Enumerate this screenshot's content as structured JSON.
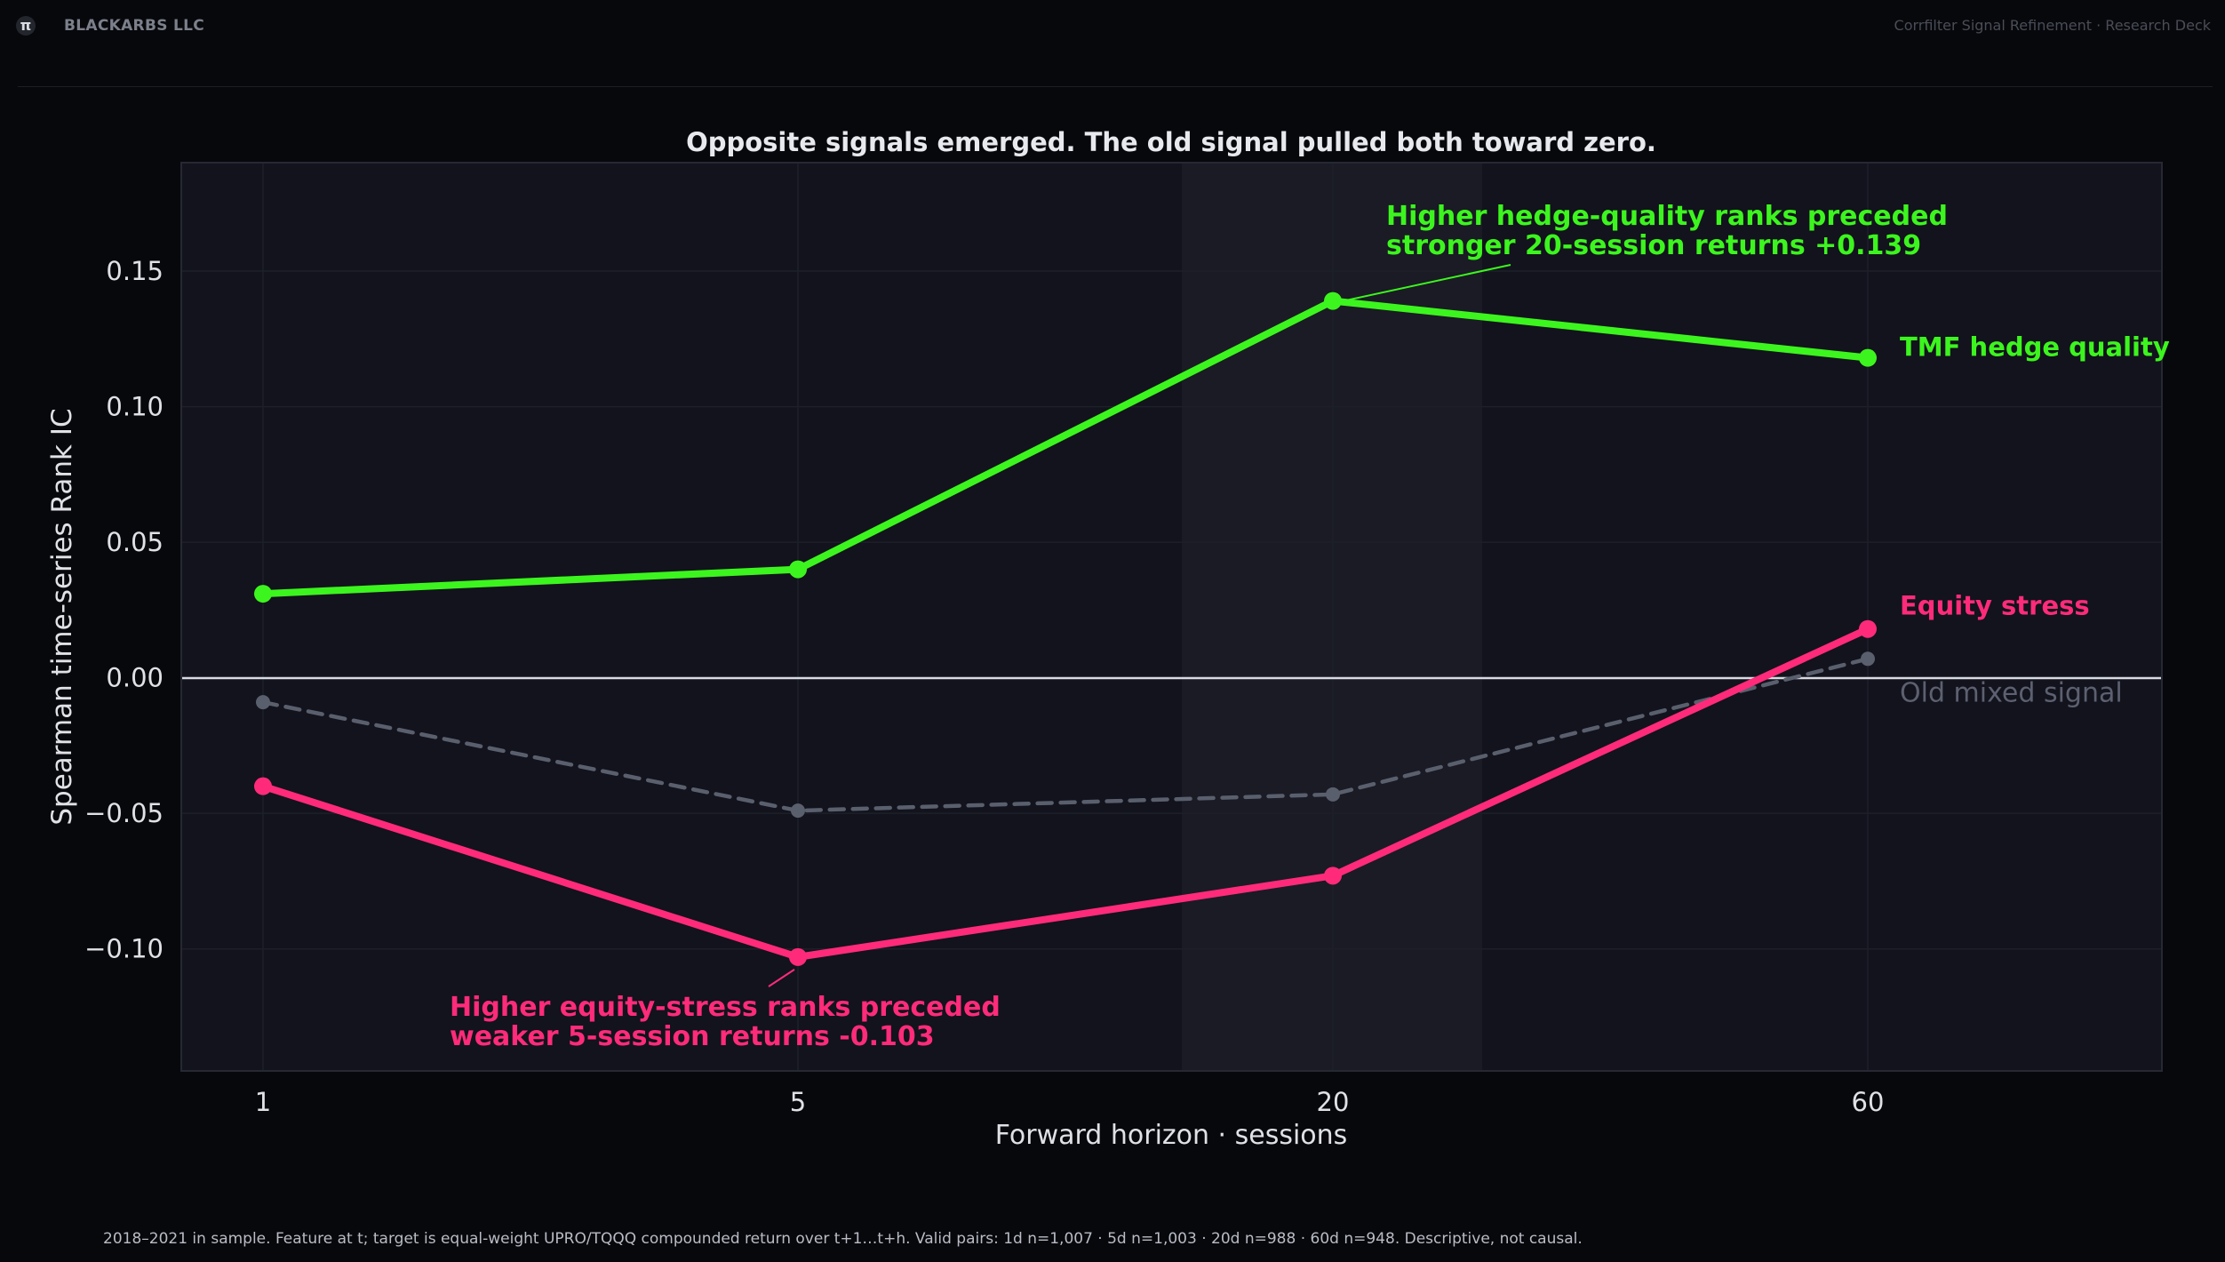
{
  "header": {
    "logo_glyph": "π",
    "brand": "BLACKARBS LLC",
    "deck_title": "Corrfilter Signal Refinement · Research Deck"
  },
  "chart_data": {
    "type": "line",
    "title": "Opposite signals emerged. The old signal pulled both toward zero.",
    "xlabel": "Forward horizon · sessions",
    "ylabel": "Spearman time-series Rank IC",
    "categories": [
      "1",
      "5",
      "20",
      "60"
    ],
    "ylim": [
      -0.145,
      0.19
    ],
    "yticks": [
      0.15,
      0.1,
      0.05,
      0.0,
      -0.05,
      -0.1
    ],
    "ytick_labels": [
      "0.15",
      "0.10",
      "0.05",
      "0.00",
      "−0.05",
      "−0.10"
    ],
    "grid": true,
    "highlight_category": "20",
    "series": [
      {
        "name": "Old mixed signal",
        "values": [
          -0.009,
          -0.049,
          -0.043,
          0.007
        ],
        "color": "#5a5f6e",
        "dashed": true
      },
      {
        "name": "Equity stress",
        "values": [
          -0.04,
          -0.103,
          -0.073,
          0.018
        ],
        "color": "#ff2b7a",
        "dashed": false
      },
      {
        "name": "TMF hedge quality",
        "values": [
          0.031,
          0.04,
          0.139,
          0.118
        ],
        "color": "#3cf51e",
        "dashed": false
      }
    ],
    "annotations": [
      {
        "lines": [
          "Higher hedge-quality ranks preceded",
          "stronger 20-session returns  +0.139"
        ],
        "color": "#3cf51e",
        "series": "TMF hedge quality",
        "category": "20"
      },
      {
        "lines": [
          "Higher equity-stress ranks preceded",
          "weaker 5-session returns  -0.103"
        ],
        "color": "#ff2b7a",
        "series": "Equity stress",
        "category": "5"
      }
    ]
  },
  "footnote": "2018–2021 in sample. Feature at t; target is equal-weight UPRO/TQQQ compounded return over t+1…t+h. Valid pairs: 1d n=1,007 · 5d n=1,003 · 20d n=988 · 60d n=948. Descriptive, not causal."
}
